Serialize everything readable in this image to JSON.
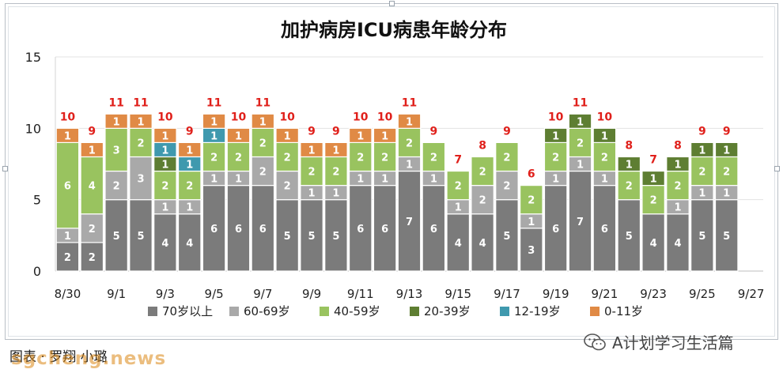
{
  "chart_data": {
    "type": "bar",
    "stacked": true,
    "title": "加护病房ICU病患年龄分布",
    "categories": [
      "8/30",
      "8/31",
      "9/1",
      "9/2",
      "9/3",
      "9/4",
      "9/5",
      "9/6",
      "9/7",
      "9/8",
      "9/9",
      "9/10",
      "9/11",
      "9/12",
      "9/13",
      "9/14",
      "9/15",
      "9/16",
      "9/17",
      "9/18",
      "9/19",
      "9/20",
      "9/21",
      "9/22",
      "9/23",
      "9/24",
      "9/25",
      "9/26",
      "9/27"
    ],
    "x_tick_labels": [
      "8/30",
      "9/1",
      "9/3",
      "9/5",
      "9/7",
      "9/9",
      "9/11",
      "9/13",
      "9/15",
      "9/17",
      "9/19",
      "9/21",
      "9/23",
      "9/25",
      "9/27"
    ],
    "y_ticks": [
      0,
      5,
      10,
      15
    ],
    "ylim": [
      0,
      15
    ],
    "grid": true,
    "legend": "bottom",
    "series": [
      {
        "name": "70岁以上",
        "color": "#7b7b7b",
        "values": [
          2,
          2,
          5,
          5,
          4,
          4,
          6,
          6,
          6,
          5,
          5,
          5,
          6,
          6,
          7,
          6,
          4,
          4,
          5,
          3,
          6,
          7,
          6,
          5,
          4,
          4,
          5,
          5,
          null
        ]
      },
      {
        "name": "60-69岁",
        "color": "#a9a9a9",
        "values": [
          1,
          2,
          2,
          3,
          1,
          1,
          1,
          1,
          2,
          2,
          1,
          1,
          1,
          1,
          1,
          1,
          1,
          2,
          2,
          1,
          1,
          1,
          1,
          0,
          0,
          1,
          1,
          1,
          null
        ]
      },
      {
        "name": "40-59岁",
        "color": "#99c35f",
        "values": [
          6,
          4,
          3,
          2,
          2,
          2,
          2,
          2,
          2,
          2,
          2,
          2,
          2,
          2,
          2,
          2,
          2,
          2,
          2,
          2,
          2,
          2,
          2,
          2,
          2,
          2,
          2,
          2,
          null
        ]
      },
      {
        "name": "20-39岁",
        "color": "#5e7e32",
        "values": [
          0,
          0,
          0,
          0,
          1,
          0,
          0,
          0,
          0,
          0,
          0,
          0,
          0,
          0,
          0,
          0,
          0,
          0,
          0,
          0,
          1,
          1,
          1,
          1,
          1,
          1,
          1,
          1,
          null
        ]
      },
      {
        "name": "12-19岁",
        "color": "#3f99ae",
        "values": [
          0,
          0,
          0,
          0,
          1,
          1,
          1,
          0,
          0,
          0,
          0,
          0,
          0,
          0,
          0,
          0,
          0,
          0,
          0,
          0,
          0,
          0,
          0,
          0,
          0,
          0,
          0,
          0,
          null
        ]
      },
      {
        "name": "0-11岁",
        "color": "#e08a45",
        "values": [
          1,
          1,
          1,
          1,
          1,
          1,
          1,
          1,
          1,
          1,
          1,
          1,
          1,
          1,
          1,
          0,
          0,
          0,
          0,
          0,
          0,
          0,
          0,
          0,
          0,
          0,
          0,
          0,
          null
        ]
      }
    ],
    "totals": [
      10,
      9,
      11,
      11,
      10,
      9,
      11,
      10,
      11,
      10,
      9,
      9,
      10,
      10,
      11,
      9,
      7,
      8,
      9,
      6,
      10,
      11,
      10,
      8,
      7,
      8,
      9,
      9,
      null
    ],
    "total_label_color": "#e0201b"
  },
  "footer": {
    "left_text": "图表 · 罗翔 小璐",
    "watermark": "sgcheng.news",
    "credit": "A计划学习生活篇"
  },
  "icons": {
    "wechat": "wechat-icon"
  }
}
